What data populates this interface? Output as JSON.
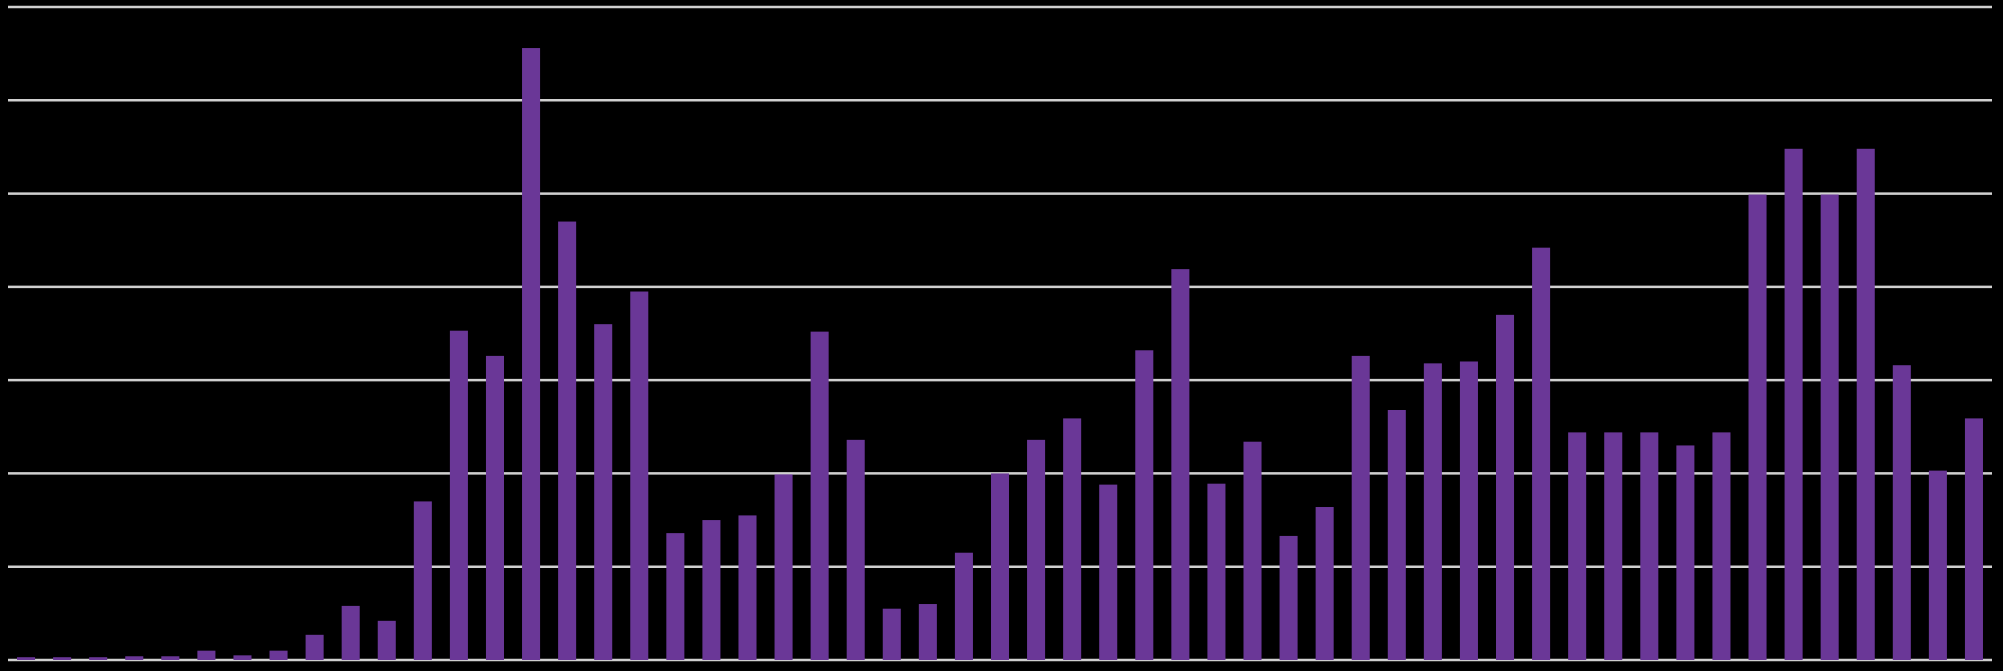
{
  "chart_data": {
    "type": "bar",
    "categories": [
      null,
      null,
      null,
      null,
      null,
      null,
      null,
      null,
      null,
      null,
      null,
      null,
      null,
      null,
      null,
      null,
      null,
      null,
      null,
      null,
      null,
      null,
      null,
      null,
      null,
      null,
      null,
      null,
      null,
      null,
      null,
      null,
      null,
      null,
      null,
      null,
      null,
      null,
      null,
      null,
      null,
      null,
      null,
      null,
      null,
      null,
      null,
      null,
      null,
      null,
      null,
      null,
      null,
      null,
      null
    ],
    "values": [
      0.03,
      0.03,
      0.03,
      0.04,
      0.04,
      0.1,
      0.05,
      0.1,
      0.27,
      0.58,
      0.42,
      1.7,
      3.53,
      3.26,
      6.56,
      4.7,
      3.6,
      3.95,
      1.36,
      1.5,
      1.55,
      1.99,
      3.52,
      2.36,
      0.55,
      0.6,
      1.15,
      2.0,
      2.36,
      2.59,
      1.88,
      3.32,
      4.19,
      1.89,
      2.34,
      1.33,
      1.64,
      3.26,
      2.68,
      3.18,
      3.2,
      3.7,
      4.42,
      2.44,
      2.44,
      2.44,
      2.3,
      2.44,
      4.99,
      5.48,
      4.99,
      5.48,
      3.16,
      2.03,
      2.59
    ],
    "color": "#6a3797",
    "ylim": [
      0,
      7
    ],
    "yticks": [
      0,
      1,
      2,
      3,
      4,
      5,
      6,
      7
    ],
    "grid": true
  }
}
